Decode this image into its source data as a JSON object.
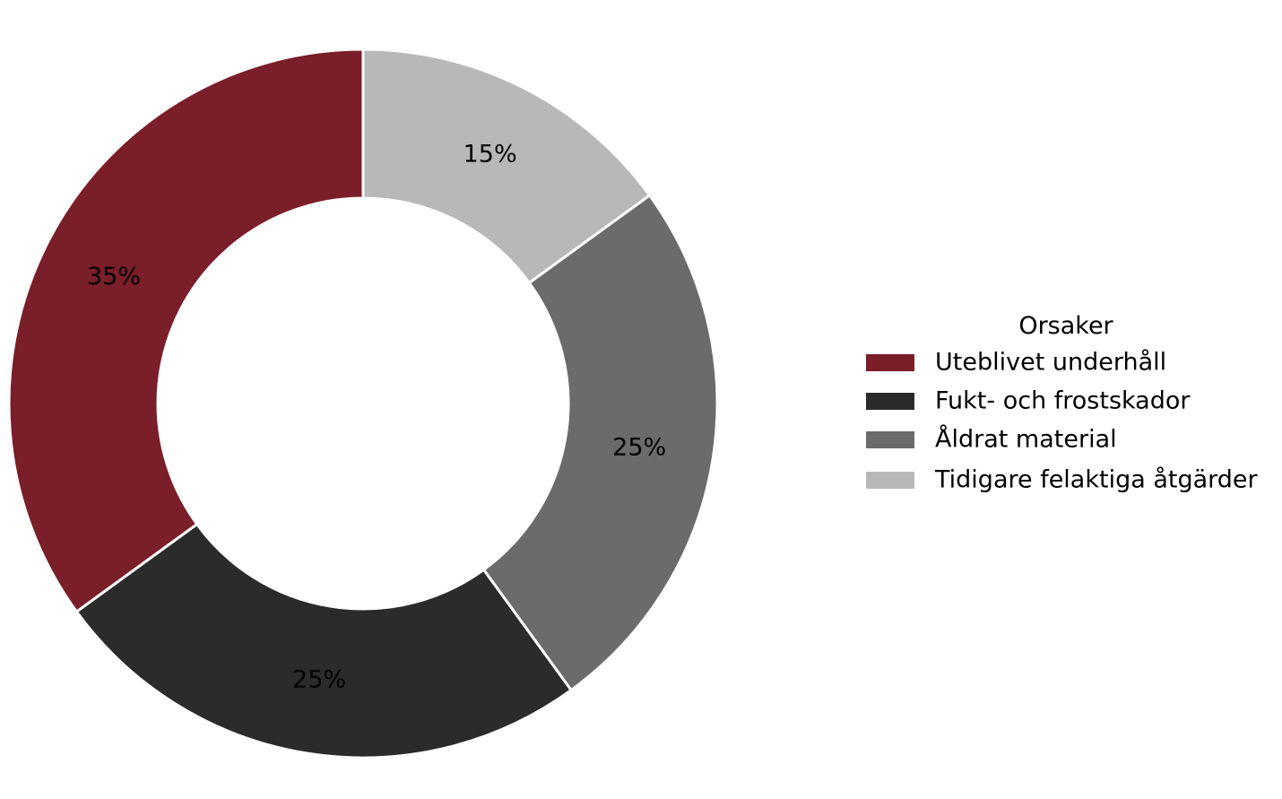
{
  "chart_data": {
    "type": "pie",
    "donut": true,
    "legend": {
      "title": "Orsaker",
      "placement": "right"
    },
    "slices": [
      {
        "label": "Uteblivet underhåll",
        "value": 35,
        "display": "35%",
        "color": "#7a1e29"
      },
      {
        "label": "Fukt- och frostskador",
        "value": 25,
        "display": "25%",
        "color": "#2b2b2b"
      },
      {
        "label": "Åldrat material",
        "value": 25,
        "display": "25%",
        "color": "#6b6b6b"
      },
      {
        "label": "Tidigare felaktiga åtgärder",
        "value": 15,
        "display": "15%",
        "color": "#b8b8b8"
      }
    ],
    "start_angle": "12 o'clock",
    "direction": "counterclockwise"
  }
}
